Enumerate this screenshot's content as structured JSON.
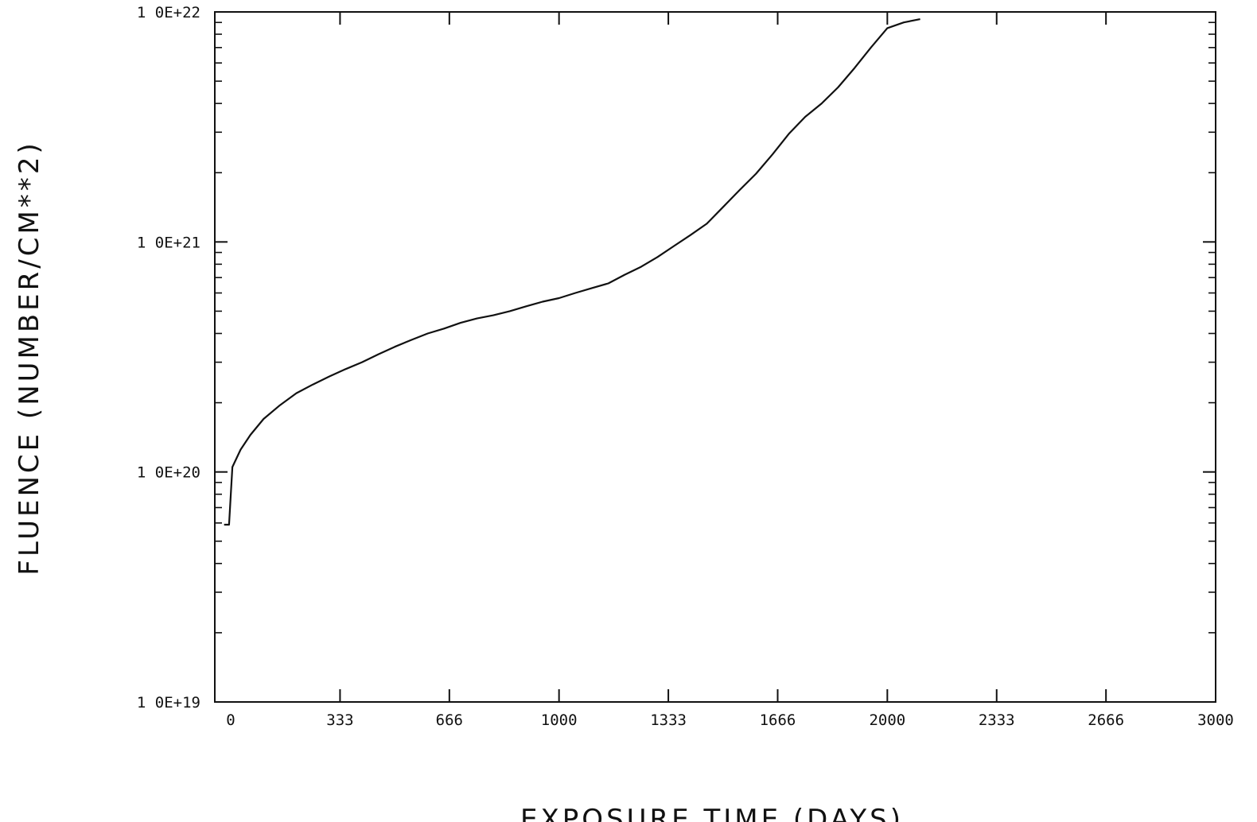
{
  "chart_data": {
    "type": "line",
    "title": "",
    "xlabel": "EXPOSURE TIME (DAYS)",
    "ylabel": "FLUENCE (NUMBER/CM**2)",
    "xscale": "linear",
    "yscale": "log",
    "xlim": [
      -30,
      3000
    ],
    "ylim": [
      1e+19,
      1e+22
    ],
    "grid": false,
    "legend": "none",
    "x_ticks": [
      0,
      333,
      666,
      1000,
      1333,
      1666,
      2000,
      2333,
      2666,
      3000
    ],
    "x_tick_labels": [
      "0",
      "333",
      "666",
      "1000",
      "1333",
      "1666",
      "2000",
      "2333",
      "2666",
      "3000"
    ],
    "y_ticks": [
      1e+19,
      1e+20,
      1e+21,
      1e+22
    ],
    "y_tick_labels": [
      "1 0E+19",
      "1 0E+20",
      "1 0E+21",
      "1 0E+22"
    ],
    "line_color": "#111111",
    "series": [
      {
        "x": [
          -20,
          -5,
          5,
          30,
          60,
          100,
          150,
          200,
          250,
          300,
          350,
          400,
          450,
          500,
          550,
          600,
          650,
          700,
          750,
          800,
          850,
          900,
          950,
          1000,
          1050,
          1100,
          1150,
          1200,
          1250,
          1300,
          1350,
          1400,
          1450,
          1500,
          1550,
          1600,
          1650,
          1700,
          1750,
          1800,
          1850,
          1900,
          1950,
          2000,
          2050,
          2100
        ],
        "values": [
          5.9e+19,
          5.9e+19,
          1.05e+20,
          1.25e+20,
          1.45e+20,
          1.7e+20,
          1.95e+20,
          2.2e+20,
          2.4e+20,
          2.6e+20,
          2.8e+20,
          3e+20,
          3.25e+20,
          3.5e+20,
          3.75e+20,
          4e+20,
          4.2e+20,
          4.45e+20,
          4.65e+20,
          4.8e+20,
          5e+20,
          5.25e+20,
          5.5e+20,
          5.7e+20,
          6e+20,
          6.3e+20,
          6.6e+20,
          7.2e+20,
          7.8e+20,
          8.6e+20,
          9.6e+20,
          1.07e+21,
          1.2e+21,
          1.42e+21,
          1.68e+21,
          1.98e+21,
          2.4e+21,
          2.95e+21,
          3.5e+21,
          4e+21,
          4.7e+21,
          5.7e+21,
          7e+21,
          8.5e+21,
          9e+21,
          9.3e+21
        ]
      }
    ]
  }
}
